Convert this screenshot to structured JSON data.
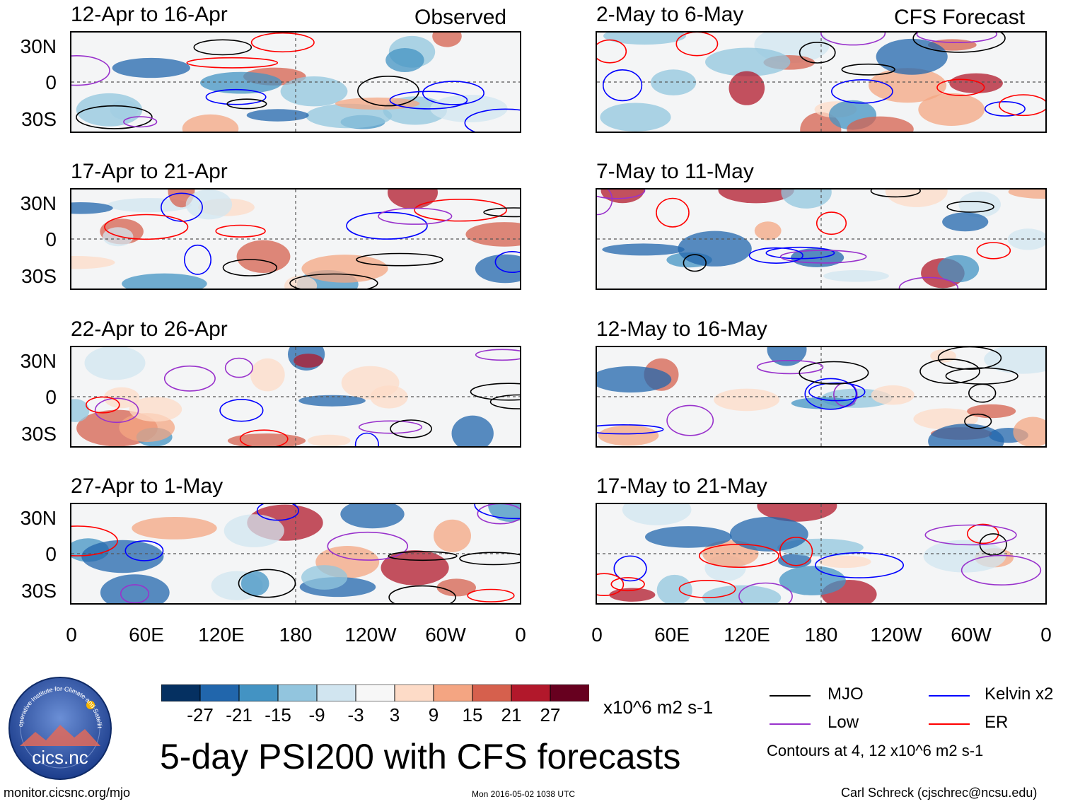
{
  "observed_header": "Observed",
  "forecast_header": "CFS Forecast",
  "observed_panels": [
    {
      "title": "12-Apr to 16-Apr"
    },
    {
      "title": "17-Apr to 21-Apr"
    },
    {
      "title": "22-Apr to 26-Apr"
    },
    {
      "title": "27-Apr to 1-May"
    }
  ],
  "forecast_panels": [
    {
      "title": "2-May to 6-May"
    },
    {
      "title": "7-May to 11-May"
    },
    {
      "title": "12-May to 16-May"
    },
    {
      "title": "17-May to 21-May"
    }
  ],
  "y_ticks": [
    "30N",
    "0",
    "30S"
  ],
  "x_ticks": [
    "0",
    "60E",
    "120E",
    "180",
    "120W",
    "60W",
    "0"
  ],
  "colorbar": {
    "labels": [
      "-27",
      "-21",
      "-15",
      "-9",
      "-3",
      "3",
      "9",
      "15",
      "21",
      "27"
    ],
    "colors": [
      "#053061",
      "#2166ac",
      "#4393c3",
      "#92c5de",
      "#d1e5f0",
      "#f7f7f7",
      "#fddbc7",
      "#f4a582",
      "#d6604d",
      "#b2182b",
      "#67001f"
    ],
    "units": "x10^6 m2 s-1"
  },
  "title": "5-day PSI200 with CFS forecasts",
  "legend": {
    "items": [
      {
        "label": "MJO",
        "color": "#000000"
      },
      {
        "label": "Kelvin x2",
        "color": "#0000ff"
      },
      {
        "label": "Low",
        "color": "#9932cc"
      },
      {
        "label": "ER",
        "color": "#ff0000"
      }
    ],
    "note": "Contours at 4, 12 x10^6 m2 s-1"
  },
  "logo": {
    "text": "cics.nc",
    "ring_text": "Cooperative Institute for Climate and Satellites"
  },
  "footer": {
    "left": "monitor.cicsnc.org/mjo",
    "center": "Mon 2016-05-02 1038 UTC",
    "right": "Carl Schreck (cjschrec@ncsu.edu)"
  }
}
